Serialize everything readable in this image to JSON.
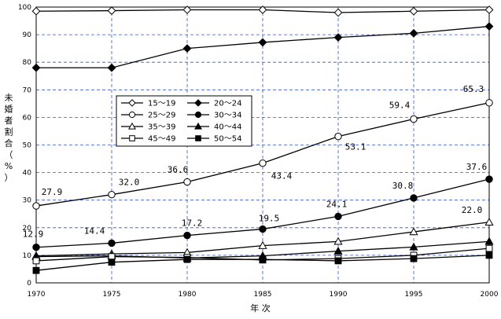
{
  "chart_data": {
    "type": "line",
    "title": "",
    "xlabel": "年 次",
    "ylabel": "未婚者割合（%）",
    "x": [
      1970,
      1975,
      1980,
      1985,
      1990,
      1995,
      2000
    ],
    "xlim": [
      1970,
      2000
    ],
    "ylim": [
      0,
      100
    ],
    "yticks": [
      0,
      10,
      20,
      30,
      40,
      50,
      60,
      70,
      80,
      90,
      100
    ],
    "grid": true,
    "legend_position": "center-left",
    "series": [
      {
        "name": "15～19",
        "marker": "diamond-open",
        "values": [
          98.5,
          98.7,
          99.0,
          99.0,
          98.0,
          98.5,
          99.0
        ]
      },
      {
        "name": "20～24",
        "marker": "diamond-filled",
        "values": [
          78.0,
          78.0,
          85.0,
          87.2,
          89.0,
          90.5,
          93.0
        ]
      },
      {
        "name": "25～29",
        "marker": "circle-open",
        "values": [
          27.9,
          32.0,
          36.6,
          43.4,
          53.1,
          59.4,
          65.3
        ]
      },
      {
        "name": "30～34",
        "marker": "circle-filled",
        "values": [
          12.9,
          14.4,
          17.2,
          19.5,
          24.1,
          30.8,
          37.6
        ]
      },
      {
        "name": "35～39",
        "marker": "triangle-open",
        "values": [
          9.8,
          10.5,
          11.0,
          13.5,
          15.0,
          18.5,
          22.0
        ]
      },
      {
        "name": "40～44",
        "marker": "triangle-filled",
        "values": [
          9.5,
          9.8,
          9.0,
          9.8,
          11.5,
          13.0,
          15.0
        ]
      },
      {
        "name": "45～49",
        "marker": "square-open",
        "values": [
          8.0,
          9.5,
          9.2,
          8.3,
          8.8,
          10.0,
          12.5
        ]
      },
      {
        "name": "50～54",
        "marker": "square-filled",
        "values": [
          4.5,
          7.5,
          8.5,
          8.5,
          8.0,
          8.8,
          10.0
        ]
      }
    ],
    "data_labels": [
      {
        "series": "25～29",
        "x": 1970,
        "text": "27.9"
      },
      {
        "series": "25～29",
        "x": 1975,
        "text": "32.0"
      },
      {
        "series": "25～29",
        "x": 1980,
        "text": "36.6"
      },
      {
        "series": "25～29",
        "x": 1985,
        "text": "43.4"
      },
      {
        "series": "25～29",
        "x": 1990,
        "text": "53.1"
      },
      {
        "series": "25～29",
        "x": 1995,
        "text": "59.4"
      },
      {
        "series": "25～29",
        "x": 2000,
        "text": "65.3"
      },
      {
        "series": "30～34",
        "x": 1970,
        "text": "12.9"
      },
      {
        "series": "30～34",
        "x": 1975,
        "text": "14.4"
      },
      {
        "series": "30～34",
        "x": 1980,
        "text": "17.2"
      },
      {
        "series": "30～34",
        "x": 1985,
        "text": "19.5"
      },
      {
        "series": "30～34",
        "x": 1990,
        "text": "24.1"
      },
      {
        "series": "30～34",
        "x": 1995,
        "text": "30.8"
      },
      {
        "series": "30～34",
        "x": 2000,
        "text": "37.6"
      },
      {
        "series": "35～39",
        "x": 2000,
        "text": "22.0"
      }
    ],
    "colors": {
      "line": "#000000",
      "grid": "#3355cc",
      "background": "#ffffff"
    }
  }
}
